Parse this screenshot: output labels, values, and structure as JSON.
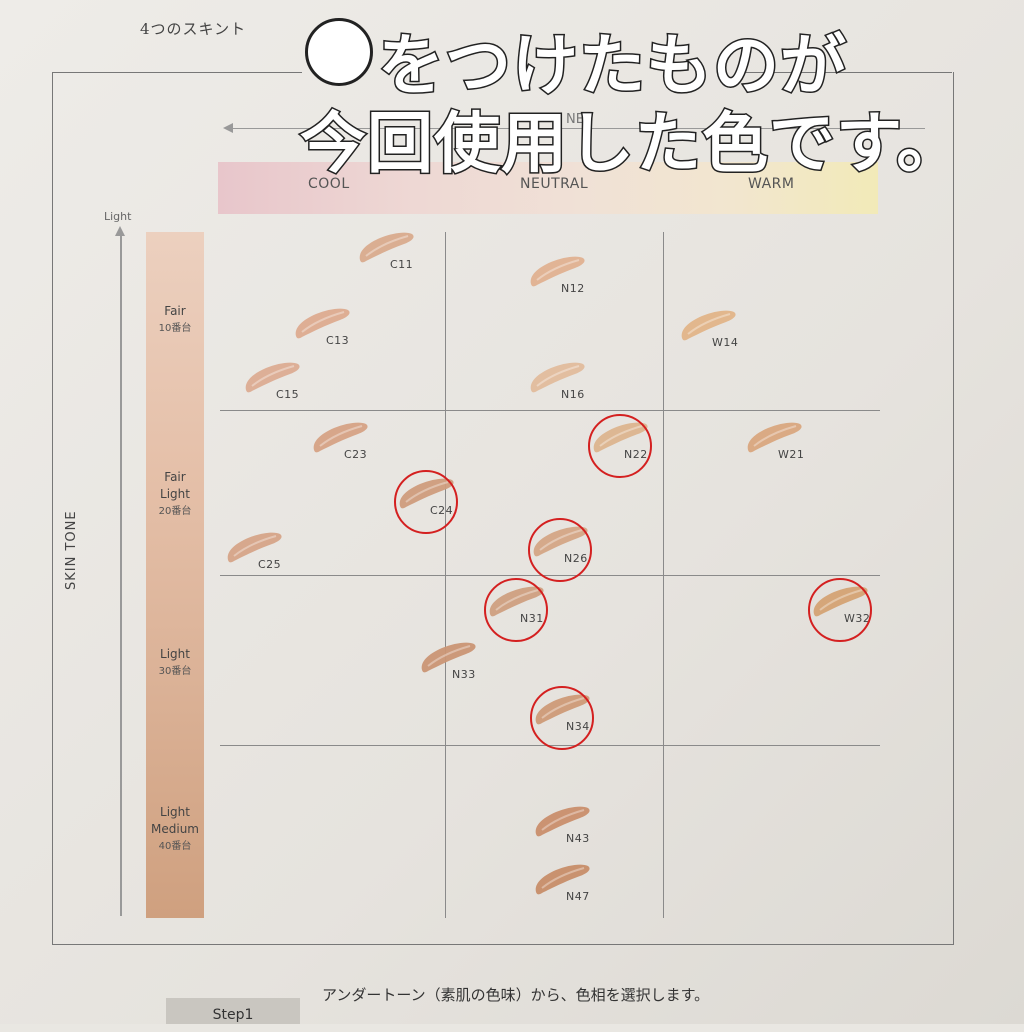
{
  "header_text": "4つのスキント",
  "overlay": {
    "line1": "をつけたものが",
    "line2": "今回使用した色です。"
  },
  "undertone_label": "NE",
  "hues": [
    "COOL",
    "NEUTRAL",
    "WARM"
  ],
  "axis": {
    "light_label": "Light",
    "skin_tone_label": "SKIN TONE"
  },
  "tones": [
    {
      "name": "Fair",
      "sub": "10番台"
    },
    {
      "name": "Fair\nLight",
      "name1": "Fair",
      "name2": "Light",
      "sub": "20番台"
    },
    {
      "name": "Light",
      "sub": "30番台"
    },
    {
      "name1": "Light",
      "name2": "Medium",
      "sub": "40番台"
    }
  ],
  "swatches": [
    {
      "code": "C11",
      "color": "#d9ab8d",
      "selected": false
    },
    {
      "code": "N12",
      "color": "#e0b190",
      "selected": false
    },
    {
      "code": "C13",
      "color": "#ddab8f",
      "selected": false
    },
    {
      "code": "W14",
      "color": "#e2b488",
      "selected": false
    },
    {
      "code": "C15",
      "color": "#dcac92",
      "selected": false
    },
    {
      "code": "N16",
      "color": "#e2bc9c",
      "selected": false
    },
    {
      "code": "C23",
      "color": "#d6a285",
      "selected": false
    },
    {
      "code": "N22",
      "color": "#dcb48e",
      "selected": true
    },
    {
      "code": "W21",
      "color": "#d9a67e",
      "selected": false
    },
    {
      "code": "C24",
      "color": "#cf9c7c",
      "selected": true
    },
    {
      "code": "N26",
      "color": "#d4a585",
      "selected": true
    },
    {
      "code": "C25",
      "color": "#d6a488",
      "selected": false
    },
    {
      "code": "N31",
      "color": "#cf9f7f",
      "selected": true
    },
    {
      "code": "W32",
      "color": "#d4a274",
      "selected": true
    },
    {
      "code": "N33",
      "color": "#ca9574",
      "selected": false
    },
    {
      "code": "N34",
      "color": "#cd9a77",
      "selected": true
    },
    {
      "code": "N43",
      "color": "#c98e6c",
      "selected": false
    },
    {
      "code": "N47",
      "color": "#c78d69",
      "selected": false
    }
  ],
  "step": {
    "label": "Step1",
    "description": "アンダートーン（素肌の色味）から、色相を選択します。"
  }
}
